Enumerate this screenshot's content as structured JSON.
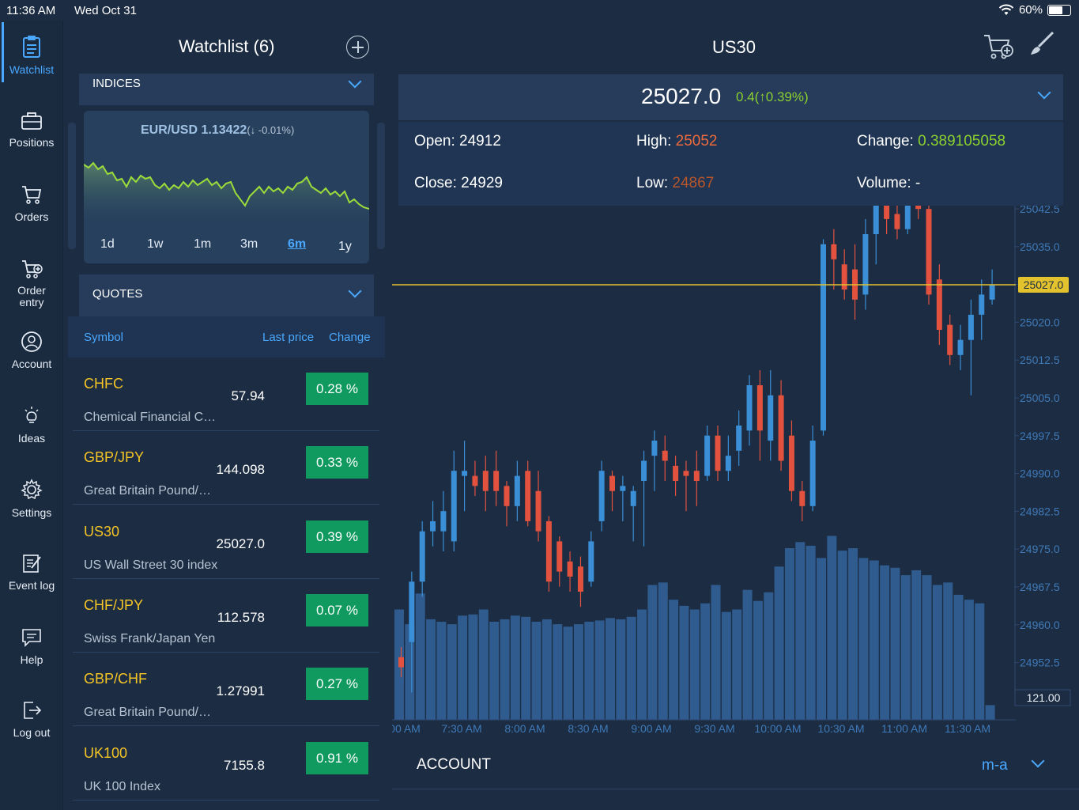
{
  "status": {
    "time": "11:36 AM",
    "date": "Wed Oct 31",
    "battery": "60%"
  },
  "nav": [
    {
      "id": "watchlist",
      "label": "Watchlist",
      "active": true
    },
    {
      "id": "positions",
      "label": "Positions"
    },
    {
      "id": "orders",
      "label": "Orders"
    },
    {
      "id": "order-entry",
      "label": "Order entry"
    },
    {
      "id": "account",
      "label": "Account"
    },
    {
      "id": "ideas",
      "label": "Ideas"
    },
    {
      "id": "settings",
      "label": "Settings"
    },
    {
      "id": "event-log",
      "label": "Event log"
    },
    {
      "id": "help",
      "label": "Help"
    },
    {
      "id": "log-out",
      "label": "Log out"
    }
  ],
  "watchlist": {
    "title": "Watchlist (6)",
    "indices_label": "INDICES",
    "mini_chart": {
      "symbol": "EUR/USD",
      "price": "1.13422",
      "change": "(↓ -0.01%)"
    },
    "periods": [
      "1d",
      "1w",
      "1m",
      "3m",
      "6m",
      "1y"
    ],
    "active_period": "6m",
    "quotes_label": "QUOTES",
    "columns": {
      "symbol": "Symbol",
      "last_price": "Last price",
      "change": "Change"
    },
    "quotes": [
      {
        "symbol": "CHFC",
        "name": "Chemical Financial C…",
        "price": "57.94",
        "change": "0.28 %"
      },
      {
        "symbol": "GBP/JPY",
        "name": "Great Britain Pound/…",
        "price": "144.098",
        "change": "0.33 %"
      },
      {
        "symbol": "US30",
        "name": "US Wall Street 30 index",
        "price": "25027.0",
        "change": "0.39 %"
      },
      {
        "symbol": "CHF/JPY",
        "name": "Swiss Frank/Japan Yen",
        "price": "112.578",
        "change": "0.07 %"
      },
      {
        "symbol": "GBP/CHF",
        "name": "Great Britain Pound/…",
        "price": "1.27991",
        "change": "0.27 %"
      },
      {
        "symbol": "UK100",
        "name": "UK 100 Index",
        "price": "7155.8",
        "change": "0.91 %"
      }
    ]
  },
  "detail": {
    "title": "US30",
    "price": "25027.0",
    "change": "0.4(↑0.39%)",
    "open_label": "Open:",
    "open": "24912",
    "high_label": "High:",
    "high": "25052",
    "change_label": "Change:",
    "change_value": "0.389105058",
    "close_label": "Close:",
    "close": "24929",
    "low_label": "Low:",
    "low": "24867",
    "volume_label": "Volume:",
    "volume": "-"
  },
  "account": {
    "label": "ACCOUNT",
    "value": "m-a"
  },
  "colors": {
    "up": "#3a8fd6",
    "down": "#e2523e",
    "volume": "#2f5b8e",
    "price_line": "#e2c22d",
    "positive_bg": "#109a5f"
  },
  "chart_data": {
    "type": "candlestick",
    "price_axis_ticks": [
      "25042.5",
      "25035.0",
      "25027.5",
      "25020.0",
      "25012.5",
      "25005.0",
      "24997.5",
      "24990.0",
      "24982.5",
      "24975.0",
      "24967.5",
      "24960.0",
      "24952.5"
    ],
    "time_axis_ticks": [
      "00 AM",
      "7:30 AM",
      "8:00 AM",
      "8:30 AM",
      "9:00 AM",
      "9:30 AM",
      "10:00 AM",
      "10:30 AM",
      "11:00 AM",
      "11:30 AM"
    ],
    "current_price": "25027.0",
    "volume_label": "121.00",
    "candles": [
      [
        24953,
        24951,
        24955,
        24949
      ],
      [
        24956,
        24968,
        24970,
        24946
      ],
      [
        24968,
        24978,
        24980,
        24965
      ],
      [
        24978,
        24980,
        24984,
        24975
      ],
      [
        24978,
        24982,
        24986,
        24974
      ],
      [
        24976,
        24990,
        24994,
        24974
      ],
      [
        24989,
        24990,
        24996,
        24982
      ],
      [
        24989,
        24987,
        24992,
        24985
      ],
      [
        24990,
        24986,
        24993,
        24982
      ],
      [
        24990,
        24986,
        24994,
        24983
      ],
      [
        24987,
        24983,
        24988,
        24979
      ],
      [
        24983,
        24989,
        24992,
        24980
      ],
      [
        24990,
        24980,
        24992,
        24979
      ],
      [
        24986,
        24978,
        24990,
        24976
      ],
      [
        24980,
        24968,
        24981,
        24966
      ],
      [
        24976,
        24970,
        24977,
        24967
      ],
      [
        24972,
        24969,
        24974,
        24966
      ],
      [
        24971,
        24966,
        24973,
        24963
      ],
      [
        24968,
        24976,
        24978,
        24967
      ],
      [
        24980,
        24990,
        24992,
        24978
      ],
      [
        24989,
        24986,
        24990,
        24982
      ],
      [
        24986,
        24987,
        24989,
        24980
      ],
      [
        24983,
        24986,
        24987,
        24976
      ],
      [
        24988,
        24992,
        24994,
        24975
      ],
      [
        24993,
        24996,
        24998,
        24986
      ],
      [
        24994,
        24992,
        24997,
        24988
      ],
      [
        24991,
        24988,
        24993,
        24985
      ],
      [
        24990,
        24989,
        24992,
        24982
      ],
      [
        24990,
        24988,
        24994,
        24983
      ],
      [
        24989,
        24997,
        24999,
        24988
      ],
      [
        24997,
        24990,
        24999,
        24988
      ],
      [
        24990,
        24993,
        24997,
        24988
      ],
      [
        24994,
        24999,
        25002,
        24991
      ],
      [
        24998,
        25007,
        25009,
        24995
      ],
      [
        25007,
        24998,
        25010,
        24992
      ],
      [
        24996,
        25005,
        25010,
        24992
      ],
      [
        25005,
        24992,
        25008,
        24990
      ],
      [
        24997,
        24986,
        25000,
        24984
      ],
      [
        24986,
        24983,
        24988,
        24980
      ],
      [
        24983,
        24996,
        24999,
        24982
      ],
      [
        24998,
        25035,
        25036,
        24997
      ],
      [
        25035,
        25032,
        25038,
        25026
      ],
      [
        25031,
        25026,
        25034,
        25024
      ],
      [
        25030,
        25024,
        25035,
        25020
      ],
      [
        25025,
        25037,
        25040,
        25022
      ],
      [
        25037,
        25045,
        25048,
        25031
      ],
      [
        25046,
        25040,
        25049,
        25037
      ],
      [
        25041,
        25038,
        25043,
        25036
      ],
      [
        25038,
        25044,
        25046,
        25037
      ],
      [
        25044,
        25042,
        25047,
        25040
      ],
      [
        25042,
        25025,
        25043,
        25023
      ],
      [
        25028,
        25018,
        25031,
        25015
      ],
      [
        25019,
        25013,
        25021,
        25011
      ],
      [
        25013,
        25016,
        25019,
        25010
      ],
      [
        25016,
        25021,
        25024,
        25005
      ],
      [
        25021,
        25025,
        25028,
        25016
      ],
      [
        25024,
        25027,
        25030,
        25023
      ]
    ],
    "volumes": [
      90,
      78,
      103,
      82,
      80,
      78,
      85,
      86,
      90,
      80,
      82,
      85,
      84,
      80,
      82,
      78,
      76,
      78,
      80,
      81,
      83,
      82,
      84,
      90,
      110,
      112,
      98,
      93,
      90,
      95,
      110,
      88,
      90,
      106,
      97,
      104,
      125,
      140,
      145,
      142,
      132,
      150,
      138,
      140,
      132,
      130,
      126,
      124,
      118,
      122,
      118,
      110,
      112,
      102,
      98,
      95,
      12
    ]
  }
}
